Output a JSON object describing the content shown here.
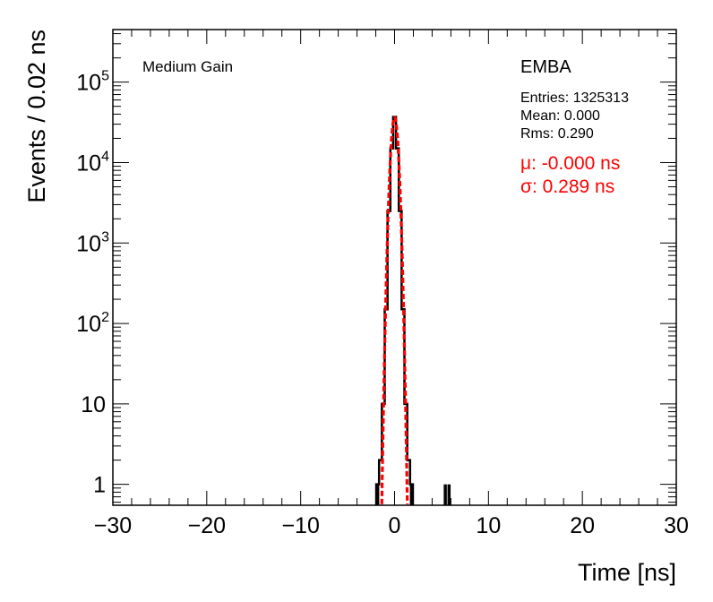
{
  "chart_data": {
    "type": "line",
    "xlabel": "Time [ns]",
    "ylabel": "Events / 0.02 ns",
    "xlim": [
      -30,
      30
    ],
    "ylim": [
      0.55,
      450000
    ],
    "yscale": "log",
    "grid": false,
    "x_ticks": [
      -30,
      -20,
      -10,
      0,
      10,
      20,
      30
    ],
    "x_tick_labels": [
      "−30",
      "−20",
      "−10",
      "0",
      "10",
      "20",
      "30"
    ],
    "y_ticks": [
      {
        "value": 1,
        "base": "1",
        "exp": ""
      },
      {
        "value": 10,
        "base": "10",
        "exp": ""
      },
      {
        "value": 100,
        "base": "10",
        "exp": "2"
      },
      {
        "value": 1000,
        "base": "10",
        "exp": "3"
      },
      {
        "value": 10000,
        "base": "10",
        "exp": "4"
      },
      {
        "value": 100000,
        "base": "10",
        "exp": "5"
      }
    ],
    "series": [
      {
        "kind": "histogram",
        "color": "#000000",
        "points": [
          {
            "x": -1.8,
            "y": 1
          },
          {
            "x": -1.5,
            "y": 2
          },
          {
            "x": -1.2,
            "y": 10
          },
          {
            "x": -0.9,
            "y": 150
          },
          {
            "x": -0.6,
            "y": 2500
          },
          {
            "x": -0.3,
            "y": 15000
          },
          {
            "x": 0.0,
            "y": 37000
          },
          {
            "x": 0.3,
            "y": 15000
          },
          {
            "x": 0.6,
            "y": 2500
          },
          {
            "x": 0.9,
            "y": 150
          },
          {
            "x": 1.2,
            "y": 10
          },
          {
            "x": 1.5,
            "y": 2
          },
          {
            "x": 1.8,
            "y": 1
          },
          {
            "x": 5.4,
            "y": 1
          },
          {
            "x": 5.8,
            "y": 1
          }
        ]
      },
      {
        "kind": "gaussian-fit",
        "color": "#ff0000",
        "amplitude": 36500,
        "mean": 0.0,
        "sigma": 0.289
      }
    ],
    "annotations": {
      "gain": "Medium Gain",
      "partition": "EMBA",
      "entries": "Entries: 1325313",
      "mean": "Mean: 0.000",
      "rms": "Rms: 0.290",
      "fit_mu": "μ: -0.000 ns",
      "fit_sigma": "σ: 0.289 ns"
    }
  }
}
